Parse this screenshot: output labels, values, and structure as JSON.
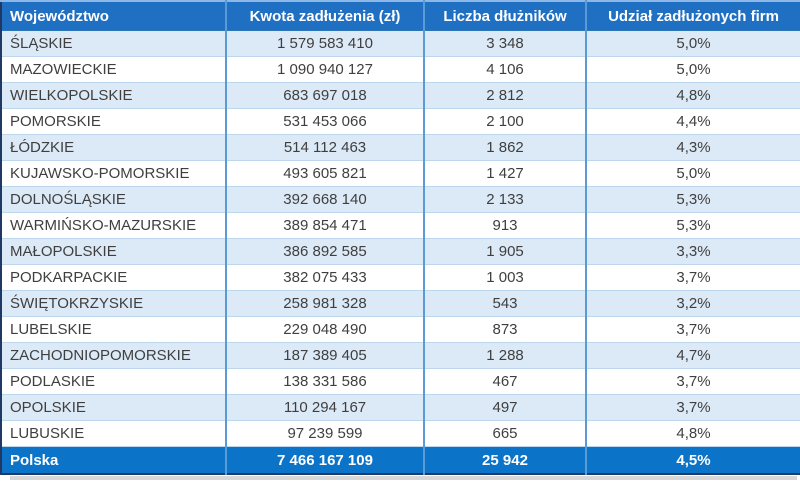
{
  "colors": {
    "header_bg": "#1f6fc2",
    "footer_bg": "#0b74c8",
    "row_alt_bg": "#dce9f6",
    "row_bg": "#ffffff",
    "border_light": "#bdd7ee",
    "border_vertical": "#5b9bd5",
    "outer_border": "#1f3864",
    "top_border_light": "#8db7e7",
    "text_dark": "#3f3f3f",
    "header_text": "#ffffff"
  },
  "chart_data": {
    "type": "table",
    "columns": [
      "Województwo",
      "Kwota zadłużenia (zł)",
      "Liczba dłużników",
      "Udział zadłużonych firm"
    ],
    "rows": [
      [
        "ŚLĄSKIE",
        "1 579 583 410",
        "3 348",
        "5,0%"
      ],
      [
        "MAZOWIECKIE",
        "1 090 940 127",
        "4 106",
        "5,0%"
      ],
      [
        "WIELKOPOLSKIE",
        "683 697 018",
        "2 812",
        "4,8%"
      ],
      [
        "POMORSKIE",
        "531 453 066",
        "2 100",
        "4,4%"
      ],
      [
        "ŁÓDZKIE",
        "514 112 463",
        "1 862",
        "4,3%"
      ],
      [
        "KUJAWSKO-POMORSKIE",
        "493 605 821",
        "1 427",
        "5,0%"
      ],
      [
        "DOLNOŚLĄSKIE",
        "392 668 140",
        "2 133",
        "5,3%"
      ],
      [
        "WARMIŃSKO-MAZURSKIE",
        "389 854 471",
        "913",
        "5,3%"
      ],
      [
        "MAŁOPOLSKIE",
        "386 892 585",
        "1 905",
        "3,3%"
      ],
      [
        "PODKARPACKIE",
        "382 075 433",
        "1 003",
        "3,7%"
      ],
      [
        "ŚWIĘTOKRZYSKIE",
        "258 981 328",
        "543",
        "3,2%"
      ],
      [
        "LUBELSKIE",
        "229 048 490",
        "873",
        "3,7%"
      ],
      [
        "ZACHODNIOPOMORSKIE",
        "187 389 405",
        "1 288",
        "4,7%"
      ],
      [
        "PODLASKIE",
        "138 331 586",
        "467",
        "3,7%"
      ],
      [
        "OPOLSKIE",
        "110 294 167",
        "497",
        "3,7%"
      ],
      [
        "LUBUSKIE",
        "97 239 599",
        "665",
        "4,8%"
      ]
    ],
    "footer": [
      "Polska",
      "7 466 167 109",
      "25 942",
      "4,5%"
    ],
    "numeric_rows": [
      {
        "region": "ŚLĄSKIE",
        "debt_pln": 1579583410,
        "debtors": 3348,
        "share_pct": 5.0
      },
      {
        "region": "MAZOWIECKIE",
        "debt_pln": 1090940127,
        "debtors": 4106,
        "share_pct": 5.0
      },
      {
        "region": "WIELKOPOLSKIE",
        "debt_pln": 683697018,
        "debtors": 2812,
        "share_pct": 4.8
      },
      {
        "region": "POMORSKIE",
        "debt_pln": 531453066,
        "debtors": 2100,
        "share_pct": 4.4
      },
      {
        "region": "ŁÓDZKIE",
        "debt_pln": 514112463,
        "debtors": 1862,
        "share_pct": 4.3
      },
      {
        "region": "KUJAWSKO-POMORSKIE",
        "debt_pln": 493605821,
        "debtors": 1427,
        "share_pct": 5.0
      },
      {
        "region": "DOLNOŚLĄSKIE",
        "debt_pln": 392668140,
        "debtors": 2133,
        "share_pct": 5.3
      },
      {
        "region": "WARMIŃSKO-MAZURSKIE",
        "debt_pln": 389854471,
        "debtors": 913,
        "share_pct": 5.3
      },
      {
        "region": "MAŁOPOLSKIE",
        "debt_pln": 386892585,
        "debtors": 1905,
        "share_pct": 3.3
      },
      {
        "region": "PODKARPACKIE",
        "debt_pln": 382075433,
        "debtors": 1003,
        "share_pct": 3.7
      },
      {
        "region": "ŚWIĘTOKRZYSKIE",
        "debt_pln": 258981328,
        "debtors": 543,
        "share_pct": 3.2
      },
      {
        "region": "LUBELSKIE",
        "debt_pln": 229048490,
        "debtors": 873,
        "share_pct": 3.7
      },
      {
        "region": "ZACHODNIOPOMORSKIE",
        "debt_pln": 187389405,
        "debtors": 1288,
        "share_pct": 4.7
      },
      {
        "region": "PODLASKIE",
        "debt_pln": 138331586,
        "debtors": 467,
        "share_pct": 3.7
      },
      {
        "region": "OPOLSKIE",
        "debt_pln": 110294167,
        "debtors": 497,
        "share_pct": 3.7
      },
      {
        "region": "LUBUSKIE",
        "debt_pln": 97239599,
        "debtors": 665,
        "share_pct": 4.8
      }
    ],
    "total": {
      "region": "Polska",
      "debt_pln": 7466167109,
      "debtors": 25942,
      "share_pct": 4.5
    }
  },
  "cell_names": [
    "region-cell",
    "debt-amount-cell",
    "debtor-count-cell",
    "share-cell"
  ]
}
